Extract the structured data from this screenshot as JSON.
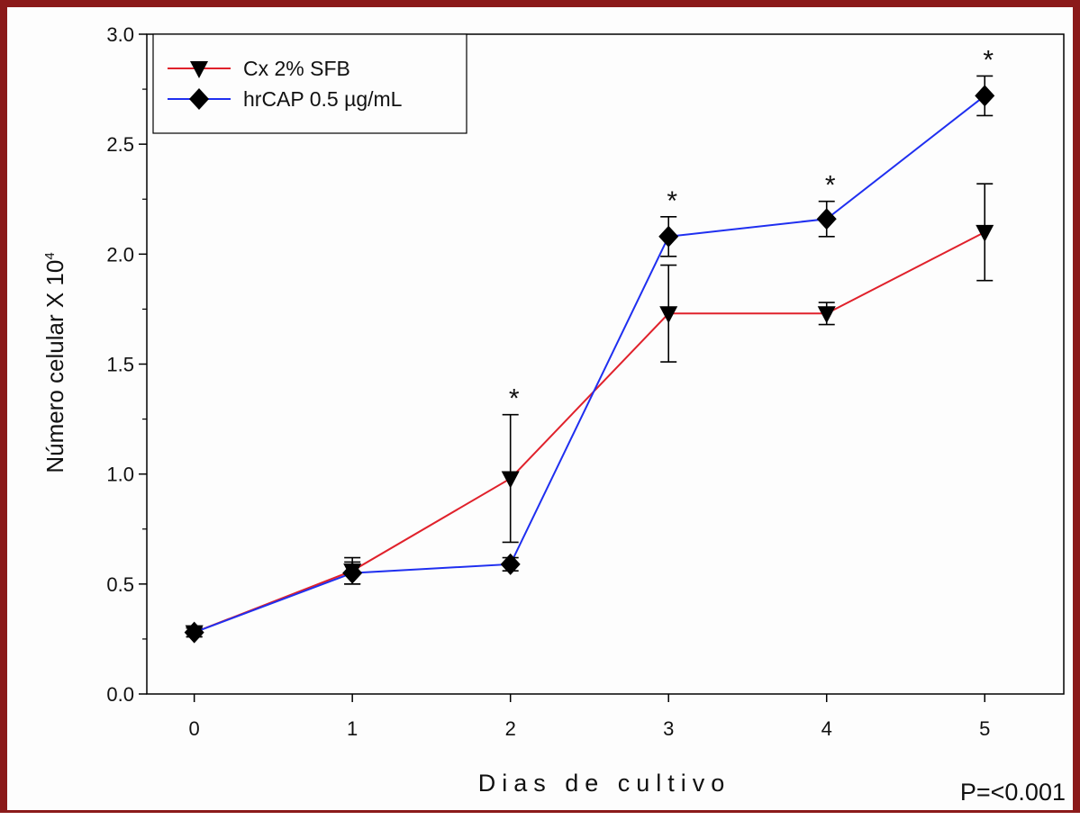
{
  "colors": {
    "frame": "#8b1a1a",
    "series_cx": "#e0212b",
    "series_hrcap": "#1f2ff0",
    "ink": "#000000"
  },
  "chart_data": {
    "type": "line",
    "title": "",
    "xlabel": "Dias de cultivo",
    "ylabel": "Número celular X 10",
    "ylabel_superscript": "4",
    "x": [
      0,
      1,
      2,
      3,
      4,
      5
    ],
    "xticks": [
      "0",
      "1",
      "2",
      "3",
      "4",
      "5"
    ],
    "xlim": [
      -0.3,
      5.5
    ],
    "ylim": [
      0,
      3.0
    ],
    "yticks": [
      "0.0",
      "0.5",
      "1.0",
      "1.5",
      "2.0",
      "2.5",
      "3.0"
    ],
    "grid": false,
    "legend_position": "top-left",
    "series": [
      {
        "name": "Cx  2%  SFB",
        "marker": "triangle-down",
        "color": "#e0212b",
        "values": [
          0.28,
          0.56,
          0.98,
          1.73,
          1.73,
          2.1
        ],
        "errors": [
          0.02,
          0.06,
          0.29,
          0.22,
          0.05,
          0.22
        ]
      },
      {
        "name": "hrCAP 0.5 µg/mL",
        "marker": "diamond",
        "color": "#1f2ff0",
        "values": [
          0.28,
          0.55,
          0.59,
          2.08,
          2.16,
          2.72
        ],
        "errors": [
          0.02,
          0.05,
          0.03,
          0.09,
          0.08,
          0.09
        ]
      }
    ],
    "significance": [
      {
        "x": 2,
        "label": "*"
      },
      {
        "x": 3,
        "label": "*"
      },
      {
        "x": 4,
        "label": "*"
      },
      {
        "x": 5,
        "label": "*"
      }
    ],
    "annotation": "P=<0.001"
  }
}
